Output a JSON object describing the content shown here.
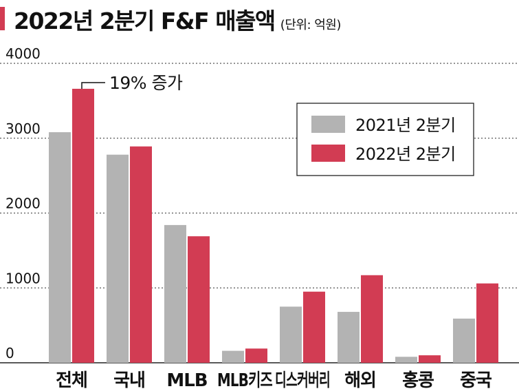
{
  "header": {
    "title": "2022년 2분기 F&F 매출액",
    "unit": "(단위: 억원)"
  },
  "colors": {
    "accent": "#d23c53",
    "series_2021": "#b3b3b3",
    "series_2022": "#d23c53",
    "grid": "#555555",
    "text": "#111111"
  },
  "chart_data": {
    "type": "bar",
    "title": "2022년 2분기 F&F 매출액",
    "subtitle": "(단위: 억원)",
    "xlabel": "",
    "ylabel": "",
    "ylim": [
      0,
      4000
    ],
    "yticks": [
      0,
      1000,
      2000,
      3000,
      4000
    ],
    "grid": true,
    "legend_position": "top-right",
    "categories": [
      "전체",
      "국내",
      "MLB",
      "MLB키즈",
      "디스커버리",
      "해외",
      "홍콩",
      "중국"
    ],
    "series": [
      {
        "name": "2021년 2분기",
        "values": [
          3080,
          2780,
          1840,
          160,
          750,
          680,
          80,
          590
        ]
      },
      {
        "name": "2022년 2분기",
        "values": [
          3660,
          2890,
          1690,
          190,
          950,
          1170,
          100,
          1060
        ]
      }
    ],
    "annotations": [
      {
        "text": "19% 증가",
        "category": "전체",
        "series": "2022년 2분기"
      }
    ]
  }
}
